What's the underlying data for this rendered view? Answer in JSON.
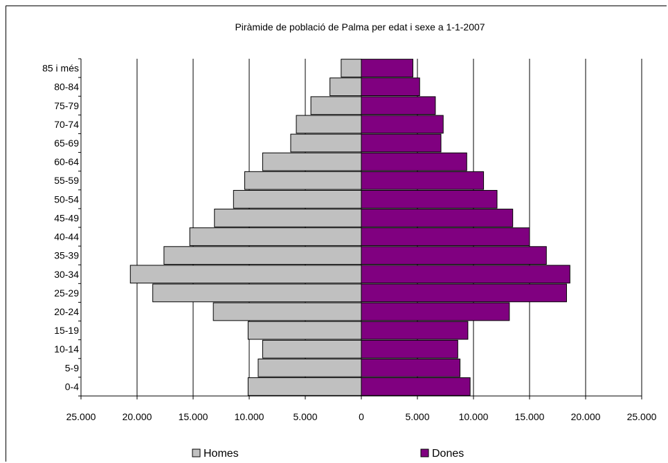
{
  "chart_data": {
    "type": "bar",
    "orientation": "horizontal",
    "title": "Piràmide de població de Palma per edat i sexe a 1-1-2007",
    "categories": [
      "0-4",
      "5-9",
      "10-14",
      "15-19",
      "20-24",
      "25-29",
      "30-34",
      "35-39",
      "40-44",
      "45-49",
      "50-54",
      "55-59",
      "60-64",
      "65-69",
      "70-74",
      "75-79",
      "80-84",
      "85 i més"
    ],
    "series": [
      {
        "name": "Homes",
        "color": "#c0c0c0",
        "values": [
          10100,
          9200,
          8800,
          10100,
          13200,
          18600,
          20600,
          17600,
          15300,
          13100,
          11400,
          10400,
          8800,
          6300,
          5800,
          4500,
          2800,
          1800
        ]
      },
      {
        "name": "Dones",
        "color": "#800080",
        "values": [
          9700,
          8800,
          8600,
          9500,
          13200,
          18300,
          18600,
          16500,
          15000,
          13500,
          12100,
          10900,
          9400,
          7100,
          7300,
          6600,
          5200,
          4600
        ]
      }
    ],
    "xlim": [
      -25000,
      25000
    ],
    "xticks": [
      -25000,
      -20000,
      -15000,
      -10000,
      -5000,
      0,
      5000,
      10000,
      15000,
      20000,
      25000
    ],
    "xtick_labels": [
      "25.000",
      "20.000",
      "15.000",
      "10.000",
      "5.000",
      "0",
      "5.000",
      "10.000",
      "15.000",
      "20.000",
      "25.000"
    ],
    "grid": "vertical",
    "legend": "bottom"
  }
}
